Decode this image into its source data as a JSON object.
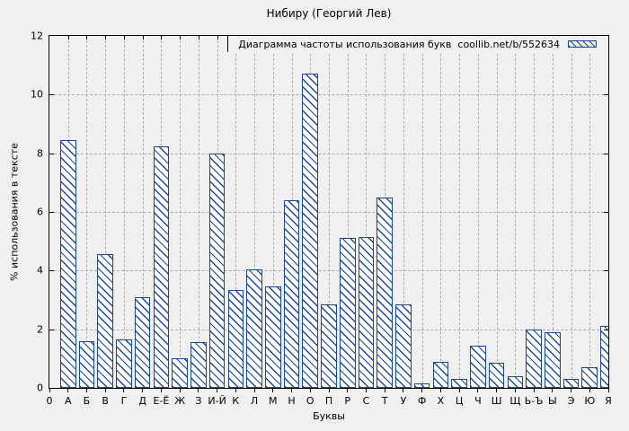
{
  "figure": {
    "background_color": "#f0f0f0",
    "border_color": "#000000",
    "grid_color": "#ababab",
    "bar_border_color": "#17479e",
    "bar_fill_color": "#ffffff"
  },
  "legend": {
    "label": "Диаграмма частоты использования букв  coollib.net/b/552634",
    "swatch": "blue-diagonal-hatch",
    "position": "top-right-inside"
  },
  "chart_data": {
    "type": "bar",
    "title": "Нибиру (Георгий Лев)",
    "xlabel": "Буквы",
    "ylabel": "% использования в тексте",
    "ylim": [
      0,
      12
    ],
    "yticks": [
      0,
      2,
      4,
      6,
      8,
      10,
      12
    ],
    "origin_label": "0",
    "grid": true,
    "legend_position": "top-right",
    "bar_style": "white fill with blue diagonal hatch, blue border",
    "categories": [
      "А",
      "Б",
      "В",
      "Г",
      "Д",
      "Е-Ё",
      "Ж",
      "З",
      "И-Й",
      "К",
      "Л",
      "М",
      "Н",
      "О",
      "П",
      "Р",
      "С",
      "Т",
      "У",
      "Ф",
      "Х",
      "Ц",
      "Ч",
      "Ш",
      "Щ",
      "Ь-Ъ",
      "Ы",
      "Э",
      "Ю",
      "Я"
    ],
    "values": [
      8.45,
      1.6,
      4.55,
      1.65,
      3.1,
      8.25,
      1.0,
      1.55,
      8.0,
      3.35,
      4.05,
      3.45,
      6.4,
      10.7,
      2.85,
      5.1,
      5.15,
      6.5,
      2.85,
      0.15,
      0.9,
      0.3,
      1.45,
      0.85,
      0.4,
      2.0,
      1.9,
      0.3,
      0.7,
      2.1
    ]
  }
}
